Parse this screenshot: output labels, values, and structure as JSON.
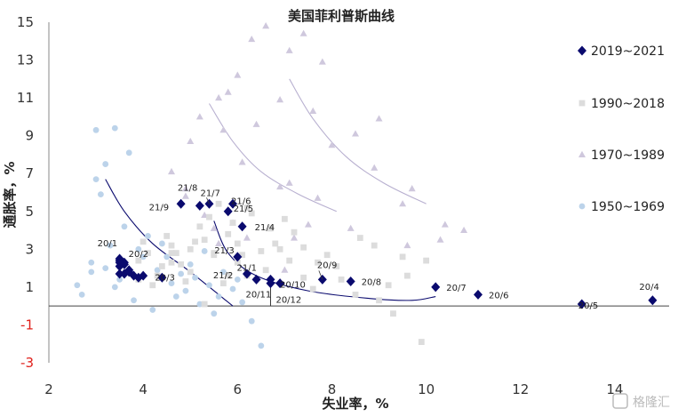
{
  "chart_data": {
    "type": "scatter",
    "title": "美国菲利普斯曲线",
    "xlabel": "失业率，%",
    "ylabel": "通胀率，%",
    "xlim": [
      2,
      15
    ],
    "ylim": [
      -3,
      15
    ],
    "x_ticks": [
      "2",
      "4",
      "6",
      "8",
      "10",
      "12",
      "14"
    ],
    "y_ticks": [
      "15",
      "13",
      "11",
      "9",
      "7",
      "5",
      "3",
      "1",
      "-1",
      "-3"
    ],
    "legend_position": "right",
    "series": [
      {
        "name": "2019~2021",
        "color": "#0a0a6e",
        "marker": "diamond",
        "points": [
          {
            "x": 3.5,
            "y": 2.4
          },
          {
            "x": 3.6,
            "y": 2.2
          },
          {
            "x": 3.7,
            "y": 1.9
          },
          {
            "x": 3.6,
            "y": 1.7
          },
          {
            "x": 3.8,
            "y": 1.6
          },
          {
            "x": 3.5,
            "y": 1.7
          },
          {
            "x": 3.7,
            "y": 1.8
          },
          {
            "x": 3.9,
            "y": 1.5
          },
          {
            "x": 4.0,
            "y": 1.6
          },
          {
            "x": 3.5,
            "y": 2.1
          },
          {
            "x": 3.6,
            "y": 2.3
          },
          {
            "x": 14.8,
            "y": 0.3,
            "label": "20/4"
          },
          {
            "x": 13.3,
            "y": 0.1,
            "label": "20/5"
          },
          {
            "x": 11.1,
            "y": 0.6,
            "label": "20/6"
          },
          {
            "x": 10.2,
            "y": 1.0,
            "label": "20/7"
          },
          {
            "x": 8.4,
            "y": 1.3,
            "label": "20/8"
          },
          {
            "x": 7.8,
            "y": 1.4,
            "label": "20/9"
          },
          {
            "x": 6.9,
            "y": 1.2,
            "label": "20/10"
          },
          {
            "x": 6.7,
            "y": 1.2,
            "label": "20/11"
          },
          {
            "x": 6.7,
            "y": 1.4,
            "label": "20/12"
          },
          {
            "x": 6.4,
            "y": 1.4,
            "label": "21/1"
          },
          {
            "x": 6.2,
            "y": 1.7,
            "label": "21/2"
          },
          {
            "x": 6.0,
            "y": 2.6,
            "label": "21/3"
          },
          {
            "x": 6.1,
            "y": 4.2,
            "label": "21/4"
          },
          {
            "x": 5.8,
            "y": 5.0,
            "label": "21/5"
          },
          {
            "x": 5.9,
            "y": 5.4,
            "label": "21/6"
          },
          {
            "x": 5.4,
            "y": 5.4,
            "label": "21/7"
          },
          {
            "x": 5.2,
            "y": 5.3,
            "label": "21/8"
          },
          {
            "x": 4.8,
            "y": 5.4,
            "label": "21/9"
          },
          {
            "x": 3.5,
            "y": 2.5,
            "label": "20/1"
          },
          {
            "x": 3.5,
            "y": 2.3,
            "label": "20/2"
          },
          {
            "x": 4.4,
            "y": 1.5,
            "label": "20/3"
          }
        ]
      },
      {
        "name": "1990~2018",
        "color": "#dcdcdc",
        "marker": "square",
        "points": [
          {
            "x": 5.6,
            "y": 5.4
          },
          {
            "x": 6.2,
            "y": 5.2
          },
          {
            "x": 7.0,
            "y": 4.6
          },
          {
            "x": 7.4,
            "y": 3.1
          },
          {
            "x": 6.9,
            "y": 3.0
          },
          {
            "x": 6.1,
            "y": 2.7
          },
          {
            "x": 5.5,
            "y": 2.8
          },
          {
            "x": 5.0,
            "y": 3.0
          },
          {
            "x": 4.6,
            "y": 2.3
          },
          {
            "x": 4.3,
            "y": 1.6
          },
          {
            "x": 4.0,
            "y": 3.4
          },
          {
            "x": 4.7,
            "y": 2.8
          },
          {
            "x": 5.8,
            "y": 1.6
          },
          {
            "x": 6.0,
            "y": 2.3
          },
          {
            "x": 5.5,
            "y": 2.7
          },
          {
            "x": 5.1,
            "y": 3.4
          },
          {
            "x": 4.6,
            "y": 3.2
          },
          {
            "x": 4.6,
            "y": 2.8
          },
          {
            "x": 5.8,
            "y": 3.8
          },
          {
            "x": 9.3,
            "y": -0.4
          },
          {
            "x": 9.6,
            "y": 1.6
          },
          {
            "x": 8.9,
            "y": 3.2
          },
          {
            "x": 8.1,
            "y": 2.1
          },
          {
            "x": 7.4,
            "y": 1.5
          },
          {
            "x": 6.2,
            "y": 1.6
          },
          {
            "x": 5.3,
            "y": 0.1
          },
          {
            "x": 4.9,
            "y": 1.3
          },
          {
            "x": 4.4,
            "y": 2.1
          },
          {
            "x": 3.9,
            "y": 2.4
          },
          {
            "x": 3.7,
            "y": 1.8
          },
          {
            "x": 9.9,
            "y": -1.9
          },
          {
            "x": 9.5,
            "y": 2.6
          },
          {
            "x": 8.2,
            "y": 1.4
          },
          {
            "x": 7.7,
            "y": 2.3
          },
          {
            "x": 6.8,
            "y": 3.3
          },
          {
            "x": 5.9,
            "y": 4.4
          },
          {
            "x": 5.3,
            "y": 3.5
          },
          {
            "x": 6.6,
            "y": 1.9
          },
          {
            "x": 7.9,
            "y": 2.7
          },
          {
            "x": 9.0,
            "y": 0.3
          },
          {
            "x": 10.0,
            "y": 2.4
          },
          {
            "x": 8.6,
            "y": 3.6
          },
          {
            "x": 6.3,
            "y": 4.9
          },
          {
            "x": 5.2,
            "y": 4.2
          },
          {
            "x": 4.1,
            "y": 2.8
          },
          {
            "x": 4.8,
            "y": 2.2
          },
          {
            "x": 5.7,
            "y": 1.2
          },
          {
            "x": 6.5,
            "y": 2.9
          },
          {
            "x": 7.2,
            "y": 3.9
          },
          {
            "x": 7.6,
            "y": 0.9
          },
          {
            "x": 8.5,
            "y": 0.6
          },
          {
            "x": 9.2,
            "y": 1.1
          },
          {
            "x": 4.5,
            "y": 3.7
          },
          {
            "x": 5.4,
            "y": 4.7
          },
          {
            "x": 6.7,
            "y": 4.1
          },
          {
            "x": 7.1,
            "y": 2.4
          },
          {
            "x": 5.0,
            "y": 1.8
          },
          {
            "x": 4.2,
            "y": 1.1
          },
          {
            "x": 3.9,
            "y": 1.4
          },
          {
            "x": 6.0,
            "y": 3.3
          }
        ]
      },
      {
        "name": "1970~1989",
        "color": "#cfc8dd",
        "marker": "triangle",
        "points": [
          {
            "x": 4.9,
            "y": 5.8
          },
          {
            "x": 5.9,
            "y": 4.4
          },
          {
            "x": 5.6,
            "y": 3.3
          },
          {
            "x": 4.9,
            "y": 6.2
          },
          {
            "x": 5.6,
            "y": 11.0
          },
          {
            "x": 8.5,
            "y": 9.1
          },
          {
            "x": 7.7,
            "y": 5.7
          },
          {
            "x": 7.1,
            "y": 6.5
          },
          {
            "x": 6.1,
            "y": 7.6
          },
          {
            "x": 5.8,
            "y": 11.3
          },
          {
            "x": 7.1,
            "y": 13.5
          },
          {
            "x": 7.6,
            "y": 10.3
          },
          {
            "x": 9.7,
            "y": 6.2
          },
          {
            "x": 9.6,
            "y": 3.2
          },
          {
            "x": 7.5,
            "y": 4.3
          },
          {
            "x": 7.2,
            "y": 3.6
          },
          {
            "x": 7.0,
            "y": 1.9
          },
          {
            "x": 6.2,
            "y": 3.6
          },
          {
            "x": 5.5,
            "y": 4.1
          },
          {
            "x": 5.3,
            "y": 4.8
          },
          {
            "x": 6.6,
            "y": 14.8
          },
          {
            "x": 6.3,
            "y": 14.1
          },
          {
            "x": 7.4,
            "y": 14.4
          },
          {
            "x": 6.0,
            "y": 12.2
          },
          {
            "x": 5.2,
            "y": 10.0
          },
          {
            "x": 8.0,
            "y": 8.5
          },
          {
            "x": 9.0,
            "y": 9.9
          },
          {
            "x": 10.8,
            "y": 4.0
          },
          {
            "x": 10.3,
            "y": 3.5
          },
          {
            "x": 8.4,
            "y": 4.1
          },
          {
            "x": 6.9,
            "y": 6.3
          },
          {
            "x": 4.6,
            "y": 7.1
          },
          {
            "x": 5.7,
            "y": 9.3
          },
          {
            "x": 6.9,
            "y": 10.9
          },
          {
            "x": 7.8,
            "y": 12.9
          },
          {
            "x": 8.9,
            "y": 7.3
          },
          {
            "x": 9.5,
            "y": 5.4
          },
          {
            "x": 10.4,
            "y": 4.3
          },
          {
            "x": 5.0,
            "y": 8.7
          },
          {
            "x": 6.4,
            "y": 9.6
          }
        ]
      },
      {
        "name": "1950~1969",
        "color": "#bcd3ea",
        "marker": "circle",
        "points": [
          {
            "x": 3.0,
            "y": 9.3
          },
          {
            "x": 3.4,
            "y": 9.4
          },
          {
            "x": 3.2,
            "y": 7.5
          },
          {
            "x": 3.0,
            "y": 6.7
          },
          {
            "x": 3.7,
            "y": 8.1
          },
          {
            "x": 3.1,
            "y": 5.9
          },
          {
            "x": 2.9,
            "y": 2.3
          },
          {
            "x": 2.6,
            "y": 1.1
          },
          {
            "x": 2.7,
            "y": 0.6
          },
          {
            "x": 2.9,
            "y": 1.8
          },
          {
            "x": 3.3,
            "y": 3.2
          },
          {
            "x": 3.6,
            "y": 4.2
          },
          {
            "x": 4.1,
            "y": 3.7
          },
          {
            "x": 4.4,
            "y": 3.3
          },
          {
            "x": 4.0,
            "y": 2.6
          },
          {
            "x": 4.3,
            "y": 1.9
          },
          {
            "x": 4.6,
            "y": 1.2
          },
          {
            "x": 4.9,
            "y": 0.8
          },
          {
            "x": 5.1,
            "y": 1.5
          },
          {
            "x": 5.4,
            "y": 1.1
          },
          {
            "x": 5.6,
            "y": 0.5
          },
          {
            "x": 5.9,
            "y": 0.9
          },
          {
            "x": 6.1,
            "y": 0.2
          },
          {
            "x": 6.3,
            "y": -0.8
          },
          {
            "x": 6.5,
            "y": -2.1
          },
          {
            "x": 5.5,
            "y": -0.4
          },
          {
            "x": 4.2,
            "y": -0.2
          },
          {
            "x": 3.8,
            "y": 0.3
          },
          {
            "x": 3.5,
            "y": 1.4
          },
          {
            "x": 3.2,
            "y": 2.0
          },
          {
            "x": 4.5,
            "y": 2.6
          },
          {
            "x": 5.0,
            "y": 2.2
          },
          {
            "x": 5.3,
            "y": 2.9
          },
          {
            "x": 5.7,
            "y": 1.8
          },
          {
            "x": 6.0,
            "y": 1.4
          },
          {
            "x": 4.8,
            "y": 1.7
          },
          {
            "x": 3.9,
            "y": 3.0
          },
          {
            "x": 3.4,
            "y": 1.0
          },
          {
            "x": 5.2,
            "y": 0.1
          },
          {
            "x": 4.7,
            "y": 0.5
          }
        ]
      }
    ],
    "trend_curves": [
      {
        "color": "#0a0a6e",
        "points": [
          [
            3.2,
            6.7
          ],
          [
            3.6,
            5.0
          ],
          [
            4.2,
            3.3
          ],
          [
            5.0,
            1.8
          ],
          [
            5.9,
            0.0
          ]
        ]
      },
      {
        "color": "#0a0a6e",
        "points": [
          [
            5.5,
            4.5
          ],
          [
            5.8,
            2.8
          ],
          [
            6.4,
            1.6
          ],
          [
            7.5,
            0.8
          ],
          [
            8.8,
            0.4
          ],
          [
            9.7,
            0.3
          ],
          [
            10.2,
            0.5
          ]
        ]
      },
      {
        "color": "#b8b0d0",
        "points": [
          [
            5.4,
            10.7
          ],
          [
            5.9,
            8.7
          ],
          [
            6.5,
            7.1
          ],
          [
            7.3,
            5.9
          ],
          [
            8.1,
            5.0
          ]
        ]
      },
      {
        "color": "#b8b0d0",
        "points": [
          [
            7.1,
            12.0
          ],
          [
            7.6,
            9.9
          ],
          [
            8.3,
            7.9
          ],
          [
            9.1,
            6.5
          ],
          [
            10.0,
            5.4
          ]
        ]
      }
    ],
    "reference_marker": {
      "x": 6.7,
      "y": 0.0
    }
  },
  "watermark": "格隆汇"
}
